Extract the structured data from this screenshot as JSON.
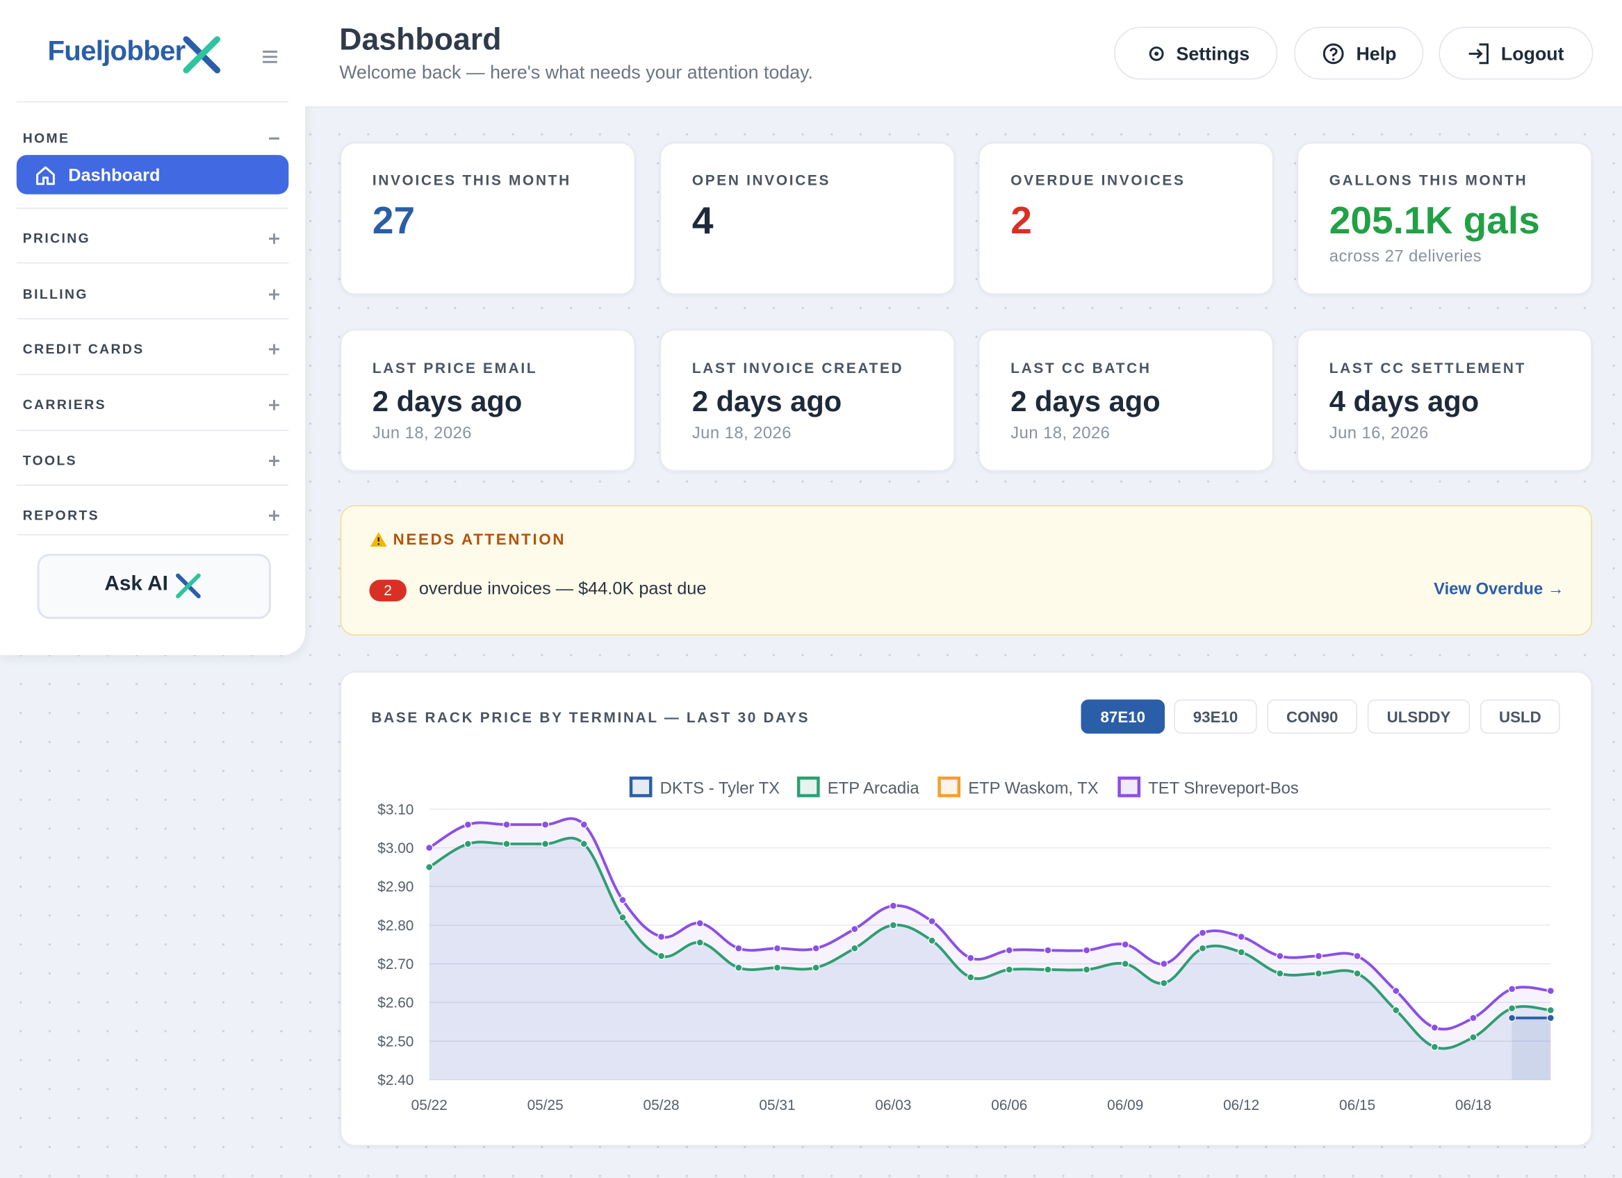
{
  "sidebar": {
    "logo": "Fueljobber",
    "sections": [
      {
        "label": "HOME",
        "items": [
          "Dashboard"
        ]
      },
      {
        "label": "PRICING"
      },
      {
        "label": "BILLING"
      },
      {
        "label": "CREDIT CARDS"
      },
      {
        "label": "CARRIERS"
      },
      {
        "label": "TOOLS"
      },
      {
        "label": "REPORTS"
      }
    ],
    "ask_ai": "Ask AI"
  },
  "header": {
    "title": "Dashboard",
    "subtitle": "Welcome back — here's what needs your attention today.",
    "buttons": [
      "Settings",
      "Help",
      "Logout"
    ]
  },
  "stats": [
    {
      "label": "INVOICES THIS MONTH",
      "value": 27,
      "color": "#2b5ea8"
    },
    {
      "label": "OPEN INVOICES",
      "value": 4,
      "color": "#1e2a3a"
    },
    {
      "label": "OVERDUE INVOICES",
      "value": 2,
      "color": "#d93025"
    },
    {
      "label": "GALLONS THIS MONTH",
      "value": "205.1K gals",
      "color": "#22a045",
      "sub": "across 27 deliveries"
    }
  ],
  "status": [
    {
      "label": "LAST PRICE EMAIL",
      "value": "2 days ago",
      "date": "Jun 18, 2026"
    },
    {
      "label": "LAST INVOICE CREATED",
      "value": "2 days ago",
      "date": "Jun 18, 2026"
    },
    {
      "label": "LAST CC BATCH",
      "value": "2 days ago",
      "date": "Jun 18, 2026"
    },
    {
      "label": "LAST CC SETTLEMENT",
      "value": "4 days ago",
      "date": "Jun 16, 2026"
    }
  ],
  "attention": {
    "title": "NEEDS ATTENTION",
    "count": 2,
    "text": "overdue invoices — $44.0K past due",
    "link": "View Overdue →"
  },
  "chart_data": {
    "type": "line",
    "title": "BASE RACK PRICE BY TERMINAL — LAST 30 DAYS",
    "tabs": [
      {
        "label": "87E10",
        "active": true
      },
      {
        "label": "93E10"
      },
      {
        "label": "CON90"
      },
      {
        "label": "ULSDDY"
      },
      {
        "label": "USLD"
      }
    ],
    "categories": [
      "05/22",
      null,
      null,
      "05/25",
      null,
      null,
      "05/28",
      null,
      null,
      "05/31",
      null,
      null,
      "06/03",
      null,
      null,
      "06/06",
      null,
      null,
      "06/09",
      null,
      null,
      "06/12",
      null,
      null,
      "06/15",
      null,
      null,
      "06/18",
      null,
      null
    ],
    "ylim": [
      2.4,
      3.1
    ],
    "yticks": [
      {
        "value": 2.4,
        "label": "$2.40"
      },
      {
        "value": 2.5,
        "label": "$2.50"
      },
      {
        "value": 2.6,
        "label": "$2.60"
      },
      {
        "value": 2.7,
        "label": "$2.70"
      },
      {
        "value": 2.8,
        "label": "$2.80"
      },
      {
        "value": 2.9,
        "label": "$2.90"
      },
      {
        "value": 3.0,
        "label": "$3.00"
      },
      {
        "value": 3.1,
        "label": "$3.10"
      }
    ],
    "grid": true,
    "series": [
      {
        "name": "DKTS - Tyler TX",
        "color": "#2b5ea8",
        "values": [
          null,
          null,
          null,
          null,
          null,
          null,
          null,
          null,
          null,
          null,
          null,
          null,
          null,
          null,
          null,
          null,
          null,
          null,
          null,
          null,
          null,
          null,
          null,
          null,
          null,
          null,
          null,
          null,
          2.56,
          2.56
        ]
      },
      {
        "name": "ETP Arcadia",
        "color": "#2e9e72",
        "values": [
          2.95,
          3.01,
          3.01,
          3.01,
          3.01,
          2.82,
          2.72,
          2.755,
          2.69,
          2.69,
          2.69,
          2.74,
          2.8,
          2.76,
          2.665,
          2.685,
          2.685,
          2.685,
          2.7,
          2.65,
          2.74,
          2.73,
          2.675,
          2.675,
          2.675,
          2.58,
          2.485,
          2.51,
          2.585,
          2.58
        ]
      },
      {
        "name": "ETP Waskom, TX",
        "color": "#f0a030",
        "values": [
          null,
          null,
          null,
          null,
          null,
          null,
          null,
          null,
          null,
          null,
          null,
          null,
          null,
          null,
          null,
          null,
          null,
          null,
          null,
          null,
          null,
          null,
          null,
          null,
          null,
          null,
          null,
          null,
          null,
          null
        ]
      },
      {
        "name": "TET Shreveport-Bos",
        "color": "#8b4fe6",
        "values": [
          3.0,
          3.06,
          3.06,
          3.06,
          3.06,
          2.865,
          2.77,
          2.805,
          2.74,
          2.74,
          2.74,
          2.79,
          2.85,
          2.81,
          2.715,
          2.735,
          2.735,
          2.735,
          2.75,
          2.7,
          2.78,
          2.77,
          2.72,
          2.72,
          2.72,
          2.63,
          2.535,
          2.56,
          2.635,
          2.63
        ]
      }
    ]
  }
}
